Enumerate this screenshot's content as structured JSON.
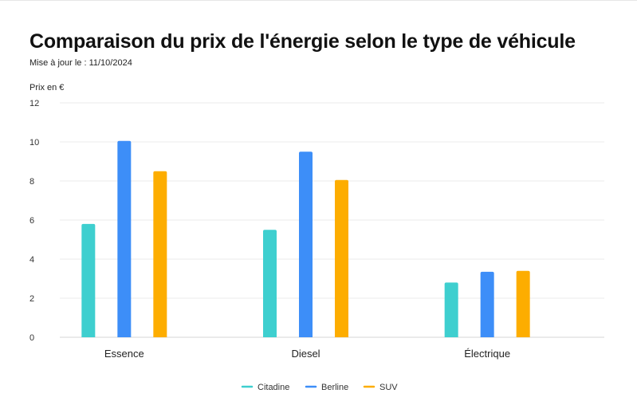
{
  "header": {
    "title": "Comparaison du prix de l'énergie selon le type de véhicule",
    "subtitle": "Mise à jour le : 11/10/2024"
  },
  "chart_data": {
    "type": "bar",
    "title": "Comparaison du prix de l'énergie selon le type de véhicule",
    "subtitle": "Mise à jour le : 11/10/2024",
    "ylabel": "Prix en €",
    "xlabel": "",
    "ylim": [
      0,
      12
    ],
    "yticks": [
      0,
      2,
      4,
      6,
      8,
      10,
      12
    ],
    "grid": true,
    "legend_position": "bottom",
    "categories": [
      "Essence",
      "Diesel",
      "Électrique"
    ],
    "series": [
      {
        "name": "Citadine",
        "color": "#3ecfcf",
        "values": [
          5.8,
          5.5,
          2.8
        ]
      },
      {
        "name": "Berline",
        "color": "#3d8ef8",
        "values": [
          10.05,
          9.5,
          3.35
        ]
      },
      {
        "name": "SUV",
        "color": "#fdad00",
        "values": [
          8.5,
          8.05,
          3.4
        ]
      }
    ]
  }
}
